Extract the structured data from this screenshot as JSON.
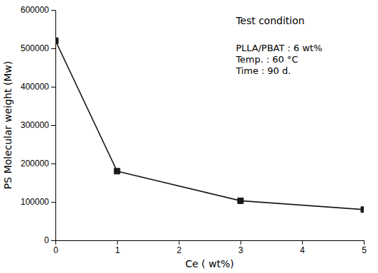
{
  "chart_data": {
    "type": "line",
    "x": [
      0,
      1,
      3,
      5
    ],
    "values": [
      520000,
      180000,
      103000,
      80000
    ],
    "xlabel": "Ce ( wt%)",
    "ylabel": "PS Molecular weight (Mw)",
    "xlim": [
      0,
      5
    ],
    "ylim": [
      0,
      600000
    ],
    "xticks": [
      0,
      1,
      2,
      3,
      4,
      5
    ],
    "yticks": [
      0,
      100000,
      200000,
      300000,
      400000,
      500000,
      600000
    ],
    "color": "#1a1a1a",
    "marker": "square",
    "grid": false,
    "annotations": [
      "Test condition",
      "PLLA/PBAT : 6 wt%",
      "Temp. : 60 °C",
      "Time : 90 d."
    ]
  }
}
